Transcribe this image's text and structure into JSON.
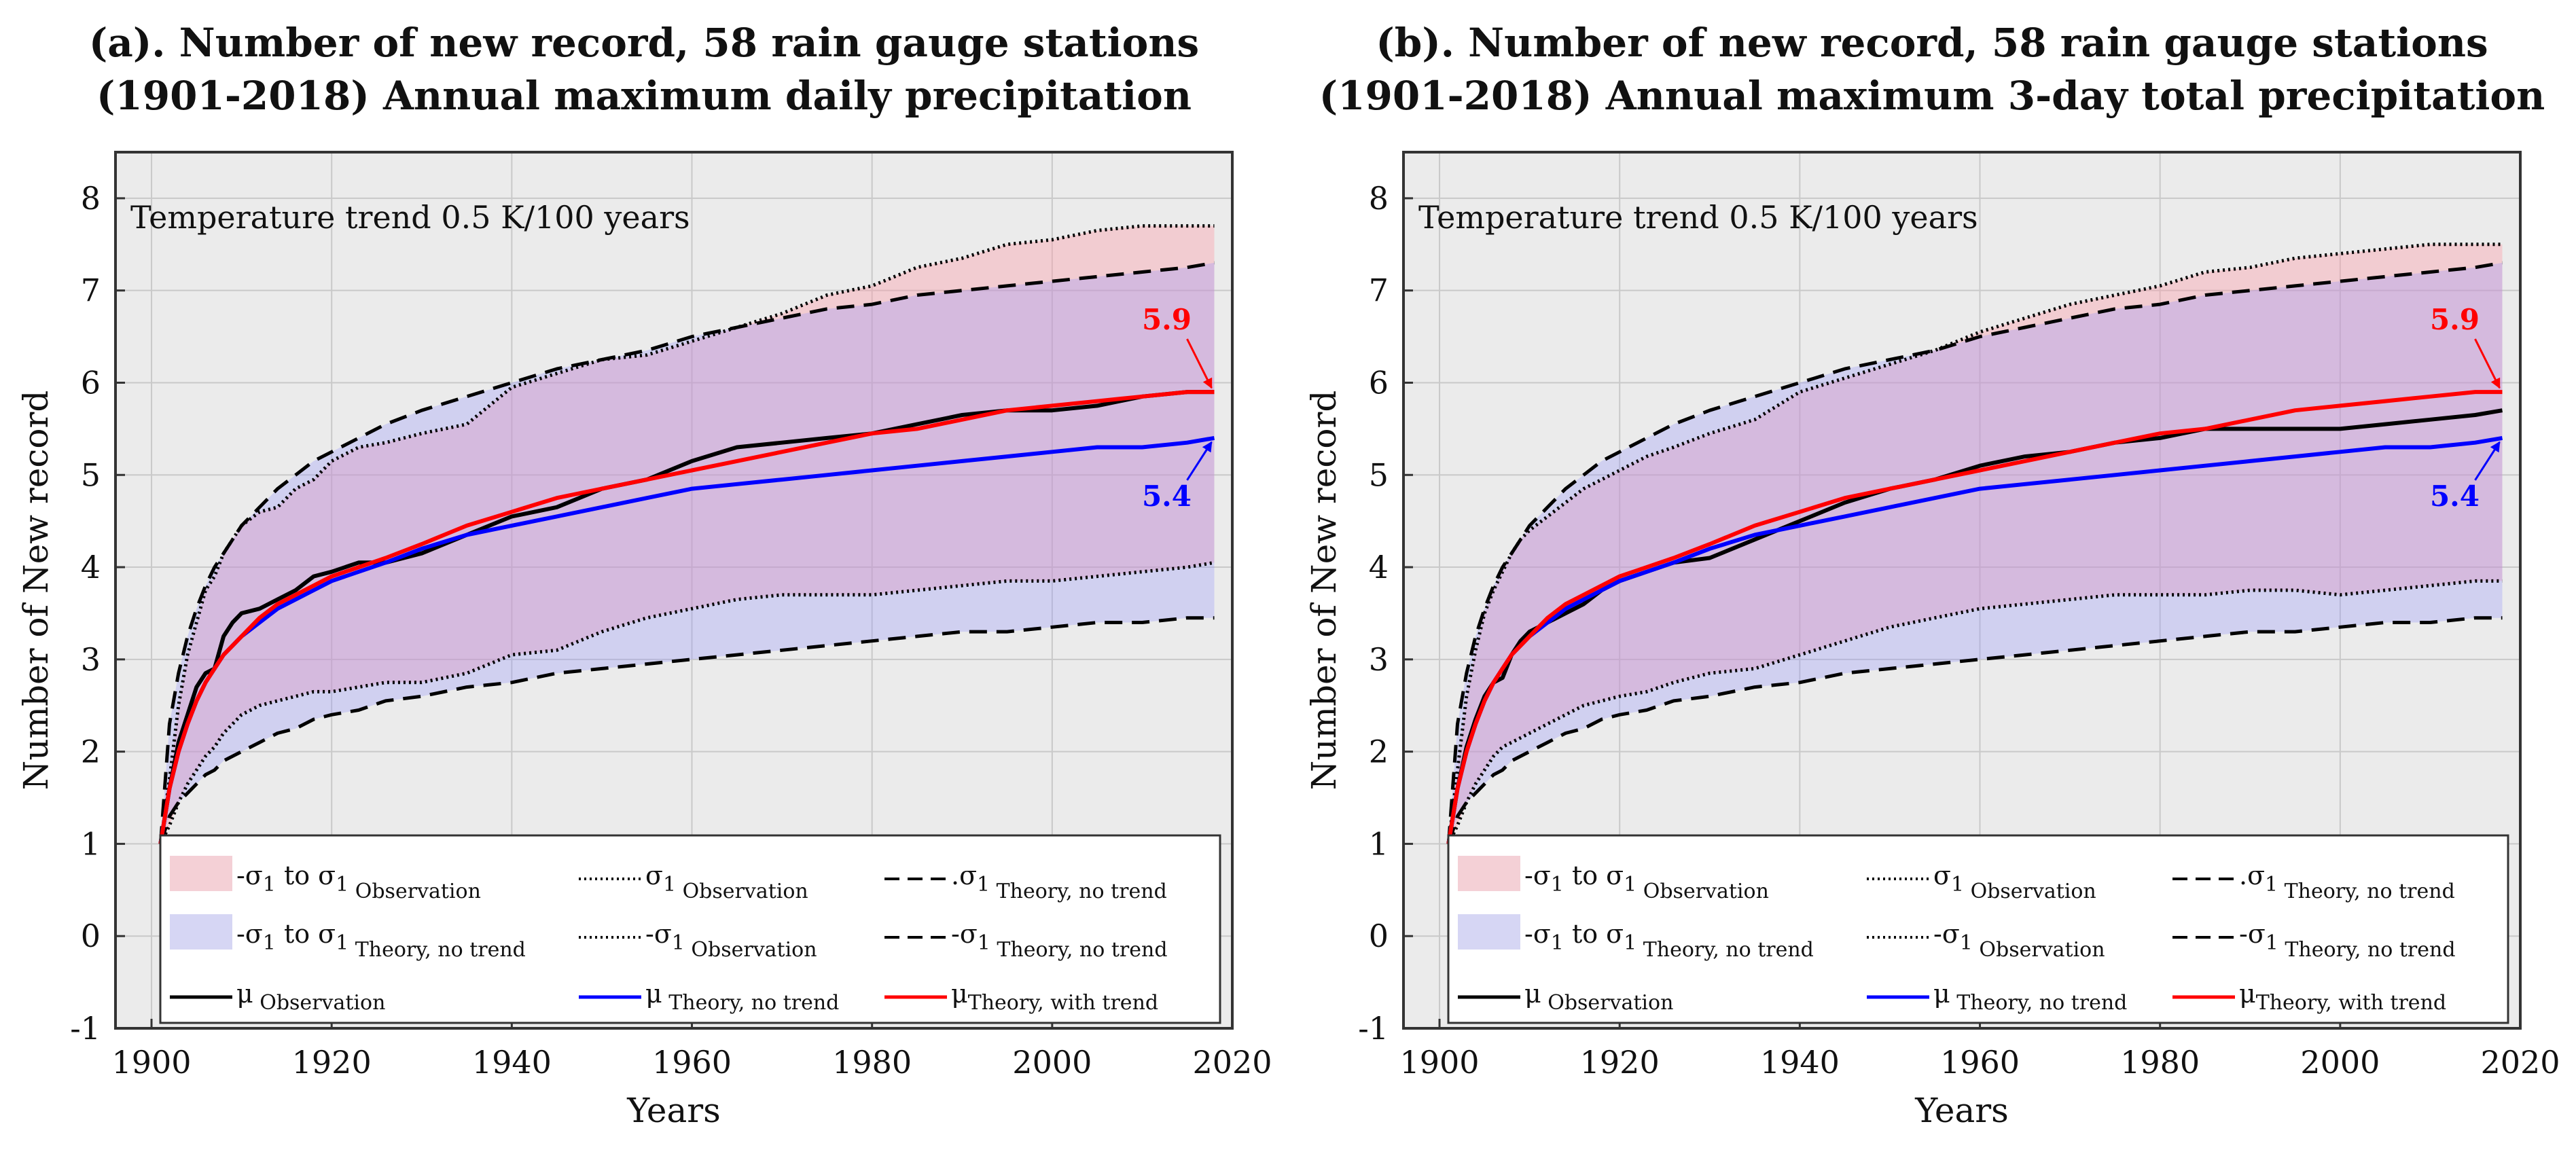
{
  "chart_data": [
    {
      "type": "line",
      "panel": "a",
      "title_line1": "(a). Number of new record, 58 rain gauge stations",
      "title_line2": "(1901-2018) Annual maximum daily precipitation",
      "xlabel": "Years",
      "ylabel": "Number of New record",
      "xlim": [
        1896,
        2020
      ],
      "ylim": [
        -1,
        8.5
      ],
      "xticks": [
        1900,
        1920,
        1940,
        1960,
        1980,
        2000,
        2020
      ],
      "yticks": [
        -1,
        0,
        1,
        2,
        3,
        4,
        5,
        6,
        7,
        8
      ],
      "grid": true,
      "annotation": "Temperature trend 0.5 K/100 years",
      "end_labels": [
        {
          "text": "5.9",
          "color": "#ff0000",
          "x": 2018,
          "y": 5.9
        },
        {
          "text": "5.4",
          "color": "#0000ff",
          "x": 2018,
          "y": 5.4
        }
      ],
      "legend": {
        "placement": "bottom",
        "entries": [
          {
            "pre": "-σ",
            "sub1": "1",
            "mid": " to σ",
            "sub2": "1",
            "post": " Observation",
            "style": "patch",
            "color": "#f4d0d6"
          },
          {
            "pre": "σ",
            "sub1": "1",
            "post": " Observation",
            "style": "dotted",
            "color": "#000000"
          },
          {
            "pre": ".σ",
            "sub1": "1",
            "post": " Theory, no trend",
            "style": "dashed",
            "color": "#000000"
          },
          {
            "pre": "-σ",
            "sub1": "1",
            "mid": " to σ",
            "sub2": "1",
            "post": " Theory, no trend",
            "style": "patch",
            "color": "#d6d6f4"
          },
          {
            "pre": "-σ",
            "sub1": "1",
            "post": " Observation",
            "style": "dotted",
            "color": "#000000"
          },
          {
            "pre": "-σ",
            "sub1": "1",
            "post": " Theory, no trend",
            "style": "dashed",
            "color": "#000000"
          },
          {
            "pre": "μ",
            "post": " Observation",
            "style": "solid",
            "color": "#000000"
          },
          {
            "pre": "μ",
            "post": " Theory, no trend",
            "style": "solid",
            "color": "#0000ff"
          },
          {
            "pre": "μ",
            "post": "Theory, with trend",
            "style": "solid",
            "color": "#ff0000"
          }
        ]
      },
      "x": [
        1901,
        1902,
        1903,
        1904,
        1905,
        1906,
        1907,
        1908,
        1909,
        1910,
        1912,
        1914,
        1916,
        1918,
        1920,
        1923,
        1926,
        1930,
        1935,
        1940,
        1945,
        1950,
        1955,
        1960,
        1965,
        1970,
        1975,
        1980,
        1985,
        1990,
        1995,
        2000,
        2005,
        2010,
        2015,
        2018
      ],
      "series": [
        {
          "name": "Observation σ1",
          "style": "dotted",
          "color": "#000000",
          "values": [
            1,
            1.7,
            2.5,
            3.05,
            3.4,
            3.75,
            3.9,
            4.15,
            4.3,
            4.45,
            4.6,
            4.65,
            4.85,
            4.95,
            5.15,
            5.3,
            5.35,
            5.45,
            5.55,
            5.95,
            6.1,
            6.25,
            6.3,
            6.45,
            6.6,
            6.75,
            6.95,
            7.05,
            7.25,
            7.35,
            7.5,
            7.55,
            7.65,
            7.7,
            7.7,
            7.7
          ]
        },
        {
          "name": "Observation -σ1",
          "style": "dotted",
          "color": "#000000",
          "values": [
            1,
            1.2,
            1.45,
            1.65,
            1.8,
            1.95,
            2.05,
            2.2,
            2.3,
            2.4,
            2.5,
            2.55,
            2.6,
            2.65,
            2.65,
            2.7,
            2.75,
            2.75,
            2.85,
            3.05,
            3.1,
            3.3,
            3.45,
            3.55,
            3.65,
            3.7,
            3.7,
            3.7,
            3.75,
            3.8,
            3.85,
            3.85,
            3.9,
            3.95,
            4.0,
            4.05
          ]
        },
        {
          "name": "Theory σ1, no trend",
          "style": "dashed",
          "color": "#000000",
          "values": [
            1,
            2.3,
            2.85,
            3.25,
            3.55,
            3.8,
            4.0,
            4.15,
            4.3,
            4.45,
            4.65,
            4.85,
            5.0,
            5.15,
            5.25,
            5.4,
            5.55,
            5.7,
            5.85,
            6.0,
            6.15,
            6.25,
            6.35,
            6.5,
            6.6,
            6.7,
            6.8,
            6.85,
            6.95,
            7.0,
            7.05,
            7.1,
            7.15,
            7.2,
            7.25,
            7.3
          ]
        },
        {
          "name": "Theory -σ1, no trend",
          "style": "dashed",
          "color": "#000000",
          "values": [
            1,
            1.3,
            1.45,
            1.55,
            1.65,
            1.75,
            1.8,
            1.9,
            1.95,
            2.0,
            2.1,
            2.2,
            2.25,
            2.35,
            2.4,
            2.45,
            2.55,
            2.6,
            2.7,
            2.75,
            2.85,
            2.9,
            2.95,
            3.0,
            3.05,
            3.1,
            3.15,
            3.2,
            3.25,
            3.3,
            3.3,
            3.35,
            3.4,
            3.4,
            3.45,
            3.45
          ]
        },
        {
          "name": "μ Observation",
          "style": "solid",
          "color": "#000000",
          "values": [
            1,
            1.6,
            2.1,
            2.4,
            2.7,
            2.85,
            2.9,
            3.25,
            3.4,
            3.5,
            3.55,
            3.65,
            3.75,
            3.9,
            3.95,
            4.05,
            4.05,
            4.15,
            4.35,
            4.55,
            4.65,
            4.85,
            4.95,
            5.15,
            5.3,
            5.35,
            5.4,
            5.45,
            5.55,
            5.65,
            5.7,
            5.7,
            5.75,
            5.85,
            5.9,
            5.9
          ]
        },
        {
          "name": "μ Theory, no trend",
          "style": "solid",
          "color": "#0000ff",
          "values": [
            1,
            1.6,
            2.0,
            2.3,
            2.55,
            2.75,
            2.9,
            3.05,
            3.15,
            3.25,
            3.4,
            3.55,
            3.65,
            3.75,
            3.85,
            3.95,
            4.05,
            4.2,
            4.35,
            4.45,
            4.55,
            4.65,
            4.75,
            4.85,
            4.9,
            4.95,
            5.0,
            5.05,
            5.1,
            5.15,
            5.2,
            5.25,
            5.3,
            5.3,
            5.35,
            5.4
          ]
        },
        {
          "name": "μ Theory, with trend",
          "style": "solid",
          "color": "#ff0000",
          "values": [
            1,
            1.6,
            2.0,
            2.3,
            2.55,
            2.75,
            2.9,
            3.05,
            3.15,
            3.25,
            3.45,
            3.6,
            3.7,
            3.8,
            3.9,
            4.0,
            4.1,
            4.25,
            4.45,
            4.6,
            4.75,
            4.85,
            4.95,
            5.05,
            5.15,
            5.25,
            5.35,
            5.45,
            5.5,
            5.6,
            5.7,
            5.75,
            5.8,
            5.85,
            5.9,
            5.9
          ]
        }
      ]
    },
    {
      "type": "line",
      "panel": "b",
      "title_line1": "(b). Number of new record, 58 rain gauge stations",
      "title_line2": "(1901-2018) Annual maximum 3-day total precipitation",
      "xlabel": "Years",
      "ylabel": "Number of New record",
      "xlim": [
        1896,
        2020
      ],
      "ylim": [
        -1,
        8.5
      ],
      "xticks": [
        1900,
        1920,
        1940,
        1960,
        1980,
        2000,
        2020
      ],
      "yticks": [
        -1,
        0,
        1,
        2,
        3,
        4,
        5,
        6,
        7,
        8
      ],
      "grid": true,
      "annotation": "Temperature trend 0.5 K/100 years",
      "end_labels": [
        {
          "text": "5.9",
          "color": "#ff0000",
          "x": 2018,
          "y": 5.9
        },
        {
          "text": "5.4",
          "color": "#0000ff",
          "x": 2018,
          "y": 5.4
        }
      ],
      "legend": {
        "placement": "bottom",
        "entries": [
          {
            "pre": "-σ",
            "sub1": "1",
            "mid": " to σ",
            "sub2": "1",
            "post": " Observation",
            "style": "patch",
            "color": "#f4d0d6"
          },
          {
            "pre": "σ",
            "sub1": "1",
            "post": " Observation",
            "style": "dotted",
            "color": "#000000"
          },
          {
            "pre": ".σ",
            "sub1": "1",
            "post": " Theory, no trend",
            "style": "dashed",
            "color": "#000000"
          },
          {
            "pre": "-σ",
            "sub1": "1",
            "mid": " to σ",
            "sub2": "1",
            "post": " Theory, no trend",
            "style": "patch",
            "color": "#d6d6f4"
          },
          {
            "pre": "-σ",
            "sub1": "1",
            "post": " Observation",
            "style": "dotted",
            "color": "#000000"
          },
          {
            "pre": "-σ",
            "sub1": "1",
            "post": " Theory, no trend",
            "style": "dashed",
            "color": "#000000"
          },
          {
            "pre": "μ",
            "post": " Observation",
            "style": "solid",
            "color": "#000000"
          },
          {
            "pre": "μ",
            "post": " Theory, no trend",
            "style": "solid",
            "color": "#0000ff"
          },
          {
            "pre": "μ",
            "post": "Theory, with trend",
            "style": "solid",
            "color": "#ff0000"
          }
        ]
      },
      "x": [
        1901,
        1902,
        1903,
        1904,
        1905,
        1906,
        1907,
        1908,
        1909,
        1910,
        1912,
        1914,
        1916,
        1918,
        1920,
        1923,
        1926,
        1930,
        1935,
        1940,
        1945,
        1950,
        1955,
        1960,
        1965,
        1970,
        1975,
        1980,
        1985,
        1990,
        1995,
        2000,
        2005,
        2010,
        2015,
        2018
      ],
      "series": [
        {
          "name": "Observation σ1",
          "style": "dotted",
          "color": "#000000",
          "values": [
            1,
            1.8,
            2.6,
            3.1,
            3.5,
            3.75,
            3.95,
            4.15,
            4.3,
            4.4,
            4.55,
            4.7,
            4.85,
            4.95,
            5.05,
            5.2,
            5.3,
            5.45,
            5.6,
            5.9,
            6.05,
            6.2,
            6.35,
            6.55,
            6.7,
            6.85,
            6.95,
            7.05,
            7.2,
            7.25,
            7.35,
            7.4,
            7.45,
            7.5,
            7.5,
            7.5
          ]
        },
        {
          "name": "Observation -σ1",
          "style": "dotted",
          "color": "#000000",
          "values": [
            1,
            1.2,
            1.45,
            1.65,
            1.8,
            1.95,
            2.05,
            2.1,
            2.15,
            2.2,
            2.3,
            2.4,
            2.5,
            2.55,
            2.6,
            2.65,
            2.75,
            2.85,
            2.9,
            3.05,
            3.2,
            3.35,
            3.45,
            3.55,
            3.6,
            3.65,
            3.7,
            3.7,
            3.7,
            3.75,
            3.75,
            3.7,
            3.75,
            3.8,
            3.85,
            3.85
          ]
        },
        {
          "name": "Theory σ1, no trend",
          "style": "dashed",
          "color": "#000000",
          "values": [
            1,
            2.3,
            2.85,
            3.25,
            3.55,
            3.8,
            4.0,
            4.15,
            4.3,
            4.45,
            4.65,
            4.85,
            5.0,
            5.15,
            5.25,
            5.4,
            5.55,
            5.7,
            5.85,
            6.0,
            6.15,
            6.25,
            6.35,
            6.5,
            6.6,
            6.7,
            6.8,
            6.85,
            6.95,
            7.0,
            7.05,
            7.1,
            7.15,
            7.2,
            7.25,
            7.3
          ]
        },
        {
          "name": "Theory -σ1, no trend",
          "style": "dashed",
          "color": "#000000",
          "values": [
            1,
            1.3,
            1.45,
            1.55,
            1.65,
            1.75,
            1.8,
            1.9,
            1.95,
            2.0,
            2.1,
            2.2,
            2.25,
            2.35,
            2.4,
            2.45,
            2.55,
            2.6,
            2.7,
            2.75,
            2.85,
            2.9,
            2.95,
            3.0,
            3.05,
            3.1,
            3.15,
            3.2,
            3.25,
            3.3,
            3.3,
            3.35,
            3.4,
            3.4,
            3.45,
            3.45
          ]
        },
        {
          "name": "μ Observation",
          "style": "solid",
          "color": "#000000",
          "values": [
            1,
            1.6,
            2.05,
            2.35,
            2.6,
            2.75,
            2.8,
            3.05,
            3.2,
            3.3,
            3.4,
            3.5,
            3.6,
            3.75,
            3.85,
            3.95,
            4.05,
            4.1,
            4.3,
            4.5,
            4.7,
            4.85,
            4.95,
            5.1,
            5.2,
            5.25,
            5.35,
            5.4,
            5.5,
            5.5,
            5.5,
            5.5,
            5.55,
            5.6,
            5.65,
            5.7
          ]
        },
        {
          "name": "μ Theory, no trend",
          "style": "solid",
          "color": "#0000ff",
          "values": [
            1,
            1.6,
            2.0,
            2.3,
            2.55,
            2.75,
            2.9,
            3.05,
            3.15,
            3.25,
            3.4,
            3.55,
            3.65,
            3.75,
            3.85,
            3.95,
            4.05,
            4.2,
            4.35,
            4.45,
            4.55,
            4.65,
            4.75,
            4.85,
            4.9,
            4.95,
            5.0,
            5.05,
            5.1,
            5.15,
            5.2,
            5.25,
            5.3,
            5.3,
            5.35,
            5.4
          ]
        },
        {
          "name": "μ Theory, with trend",
          "style": "solid",
          "color": "#ff0000",
          "values": [
            1,
            1.6,
            2.0,
            2.3,
            2.55,
            2.75,
            2.9,
            3.05,
            3.15,
            3.25,
            3.45,
            3.6,
            3.7,
            3.8,
            3.9,
            4.0,
            4.1,
            4.25,
            4.45,
            4.6,
            4.75,
            4.85,
            4.95,
            5.05,
            5.15,
            5.25,
            5.35,
            5.45,
            5.5,
            5.6,
            5.7,
            5.75,
            5.8,
            5.85,
            5.9,
            5.9
          ]
        }
      ]
    }
  ]
}
